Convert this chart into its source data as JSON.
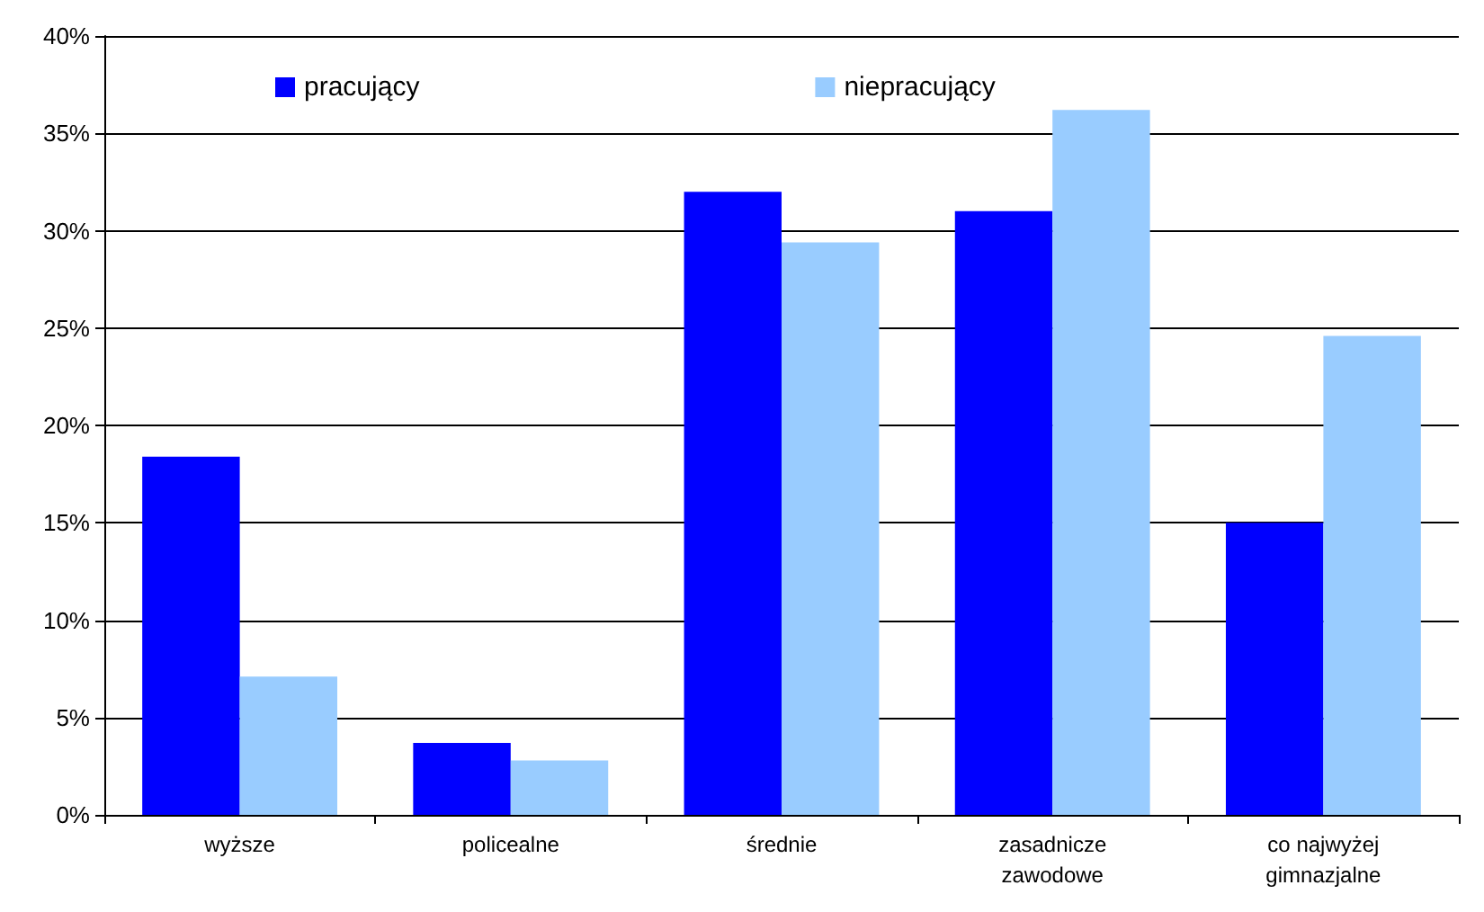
{
  "chart_data": {
    "type": "bar",
    "categories": [
      "wyższe",
      "policealne",
      "średnie",
      "zasadnicze\nzawodowe",
      "co najwyżej\ngimnazjalne"
    ],
    "series": [
      {
        "name": "pracujący",
        "color": "#0000ff",
        "values": [
          18.4,
          3.7,
          32.0,
          31.0,
          15.0
        ]
      },
      {
        "name": "niepracujący",
        "color": "#99ccff",
        "values": [
          7.1,
          2.8,
          29.4,
          36.2,
          24.6
        ]
      }
    ],
    "ylim": [
      0,
      40
    ],
    "yticks": [
      {
        "value": 0,
        "label": "0%"
      },
      {
        "value": 5,
        "label": "5%"
      },
      {
        "value": 10,
        "label": "10%"
      },
      {
        "value": 15,
        "label": "15%"
      },
      {
        "value": 20,
        "label": "20%"
      },
      {
        "value": 25,
        "label": "25%"
      },
      {
        "value": 30,
        "label": "30%"
      },
      {
        "value": 35,
        "label": "35%"
      },
      {
        "value": 40,
        "label": "40%"
      }
    ],
    "grid": "y",
    "legend": "top"
  }
}
